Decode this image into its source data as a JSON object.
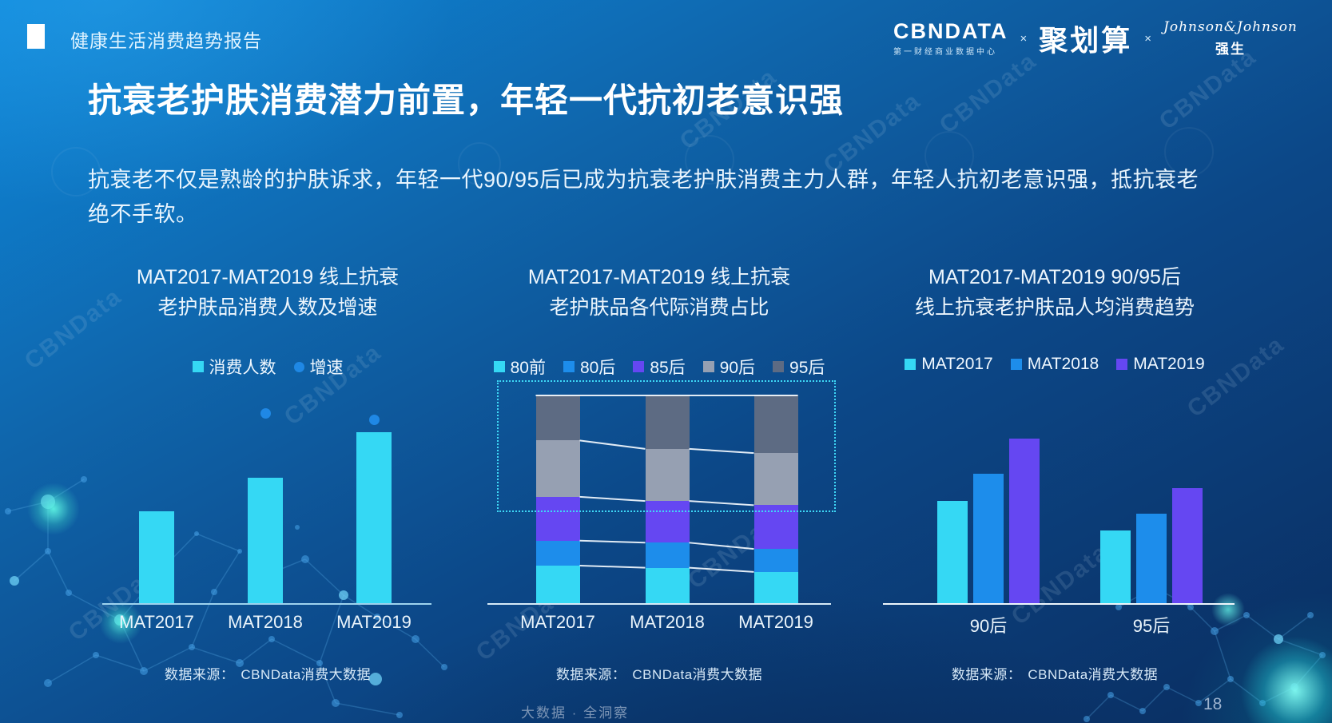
{
  "page": {
    "report_tag": "健康生活消费趋势报告",
    "title": "抗衰老护肤消费潜力前置，年轻一代抗初老意识强",
    "intro": "抗衰老不仅是熟龄的护肤诉求，年轻一代90/95后已成为抗衰老护肤消费主力人群，年轻人抗初老意识强，抵抗衰老\n绝不手软。",
    "footer_slogan": "大数据 · 全洞察",
    "page_number": "18",
    "watermark": "CBNData"
  },
  "logos": {
    "cbndata": "CBNDATA",
    "cbndata_subtitle": "第一财经商业数据中心",
    "cross": "×",
    "juhuasuan": "聚划算",
    "jnj": "Johnson&Johnson",
    "jnj_cn": "强生"
  },
  "source": {
    "label": "数据来源：",
    "value": "CBNData消费大数据"
  },
  "colors": {
    "cyan": "#35d8f4",
    "blue": "#1d8deb",
    "purple": "#6547f2",
    "gray_light": "#96a0b2",
    "gray_dark": "#5d6b83",
    "dot_blue": "#1f88e5",
    "highlight_border": "#3ed8f6"
  },
  "chart_data": [
    {
      "id": "consumers-and-growth",
      "type": "bar",
      "title": "MAT2017-MAT2019 线上抗衰老护肤品消费人数及增速",
      "title_lines": [
        "MAT2017-MAT2019 线上抗衰",
        "老护肤品消费人数及增速"
      ],
      "categories": [
        "MAT2017",
        "MAT2018",
        "MAT2019"
      ],
      "legend": [
        {
          "label": "消费人数",
          "marker": "square",
          "color": "#35d8f4"
        },
        {
          "label": "增速",
          "marker": "circle",
          "color": "#1f88e5"
        }
      ],
      "series": [
        {
          "name": "消费人数",
          "kind": "bar",
          "color": "#35d8f4",
          "values_pct_of_plot": [
            44,
            60,
            82
          ]
        },
        {
          "name": "增速",
          "kind": "point",
          "color": "#1f88e5",
          "values_pct_of_plot": [
            null,
            91,
            88
          ]
        }
      ],
      "ylim": "无数值轴：柱高为占绘图区高度百分比的估计值",
      "source": "数据来源： CBNData消费大数据"
    },
    {
      "id": "generation-share",
      "type": "stacked-bar-100",
      "title": "MAT2017-MAT2019 线上抗衰老护肤品各代际消费占比",
      "title_lines": [
        "MAT2017-MAT2019 线上抗衰",
        "老护肤品各代际消费占比"
      ],
      "categories": [
        "MAT2017",
        "MAT2018",
        "MAT2019"
      ],
      "legend": [
        {
          "label": "80前",
          "marker": "square",
          "color": "#35d8f4"
        },
        {
          "label": "80后",
          "marker": "square",
          "color": "#1d8deb"
        },
        {
          "label": "85后",
          "marker": "square",
          "color": "#6547f2"
        },
        {
          "label": "90后",
          "marker": "square",
          "color": "#96a0b2"
        },
        {
          "label": "95后",
          "marker": "square",
          "color": "#5d6b83"
        }
      ],
      "series": [
        {
          "name": "80前",
          "color": "#35d8f4",
          "values_pct": [
            18,
            17,
            15
          ]
        },
        {
          "name": "80后",
          "color": "#1d8deb",
          "values_pct": [
            12,
            12,
            11
          ]
        },
        {
          "name": "85后",
          "color": "#6547f2",
          "values_pct": [
            21,
            20,
            21
          ]
        },
        {
          "name": "90后",
          "color": "#96a0b2",
          "values_pct": [
            27,
            25,
            25
          ]
        },
        {
          "name": "95后",
          "color": "#5d6b83",
          "values_pct": [
            22,
            26,
            28
          ]
        }
      ],
      "highlight": "90后与95后顶部区段被青色虚线框圈出",
      "source": "数据来源： CBNData消费大数据"
    },
    {
      "id": "per-capita-spend-90-95",
      "type": "grouped-bar",
      "title": "MAT2017-MAT2019 90/95后线上抗衰老护肤品人均消费趋势",
      "title_lines": [
        "MAT2017-MAT2019 90/95后",
        "线上抗衰老护肤品人均消费趋势"
      ],
      "categories": [
        "90后",
        "95后"
      ],
      "legend": [
        {
          "label": "MAT2017",
          "marker": "square",
          "color": "#35d8f4"
        },
        {
          "label": "MAT2018",
          "marker": "square",
          "color": "#1d8deb"
        },
        {
          "label": "MAT2019",
          "marker": "square",
          "color": "#6547f2"
        }
      ],
      "series": [
        {
          "name": "MAT2017",
          "color": "#35d8f4",
          "values_pct_of_plot": [
            49,
            35
          ]
        },
        {
          "name": "MAT2018",
          "color": "#1d8deb",
          "values_pct_of_plot": [
            62,
            43
          ]
        },
        {
          "name": "MAT2019",
          "color": "#6547f2",
          "values_pct_of_plot": [
            79,
            55
          ]
        }
      ],
      "ylim": "无数值轴：柱高为占绘图区高度百分比的估计值",
      "source": "数据来源： CBNData消费大数据"
    }
  ]
}
